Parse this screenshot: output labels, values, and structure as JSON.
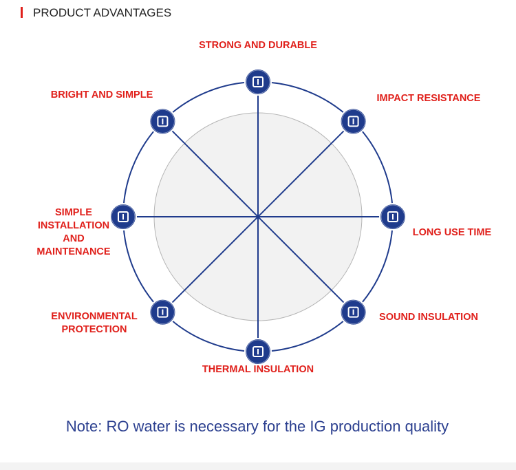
{
  "header": {
    "title": "PRODUCT ADVANTAGES"
  },
  "features": [
    {
      "lines": [
        "STRONG AND DURABLE"
      ]
    },
    {
      "lines": [
        "IMPACT RESISTANCE"
      ]
    },
    {
      "lines": [
        "LONG USE TIME"
      ]
    },
    {
      "lines": [
        "SOUND INSULATION"
      ]
    },
    {
      "lines": [
        "THERMAL INSULATION"
      ]
    },
    {
      "lines": [
        "ENVIRONMENTAL",
        "PROTECTION"
      ]
    },
    {
      "lines": [
        "SIMPLE",
        "INSTALLATION",
        "AND",
        "MAINTENANCE"
      ]
    },
    {
      "lines": [
        "BRIGHT AND SIMPLE"
      ]
    }
  ],
  "note": "Note: RO water is necessary for the IG production quality"
}
